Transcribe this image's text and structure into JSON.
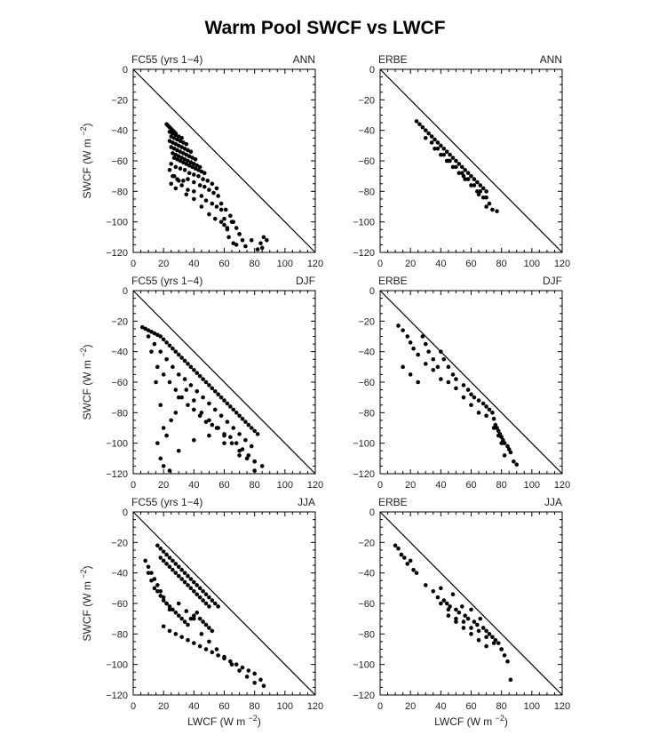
{
  "title": "Warm Pool SWCF vs LWCF",
  "xlabel": "LWCF (W m",
  "ylabel": "SWCF (W m",
  "unit_exponent": "−2",
  "chart_data": [
    {
      "type": "scatter",
      "left_label": "FC55 (yrs 1−4)",
      "right_label": "ANN",
      "xlim": [
        0,
        120
      ],
      "ylim": [
        -120,
        0
      ],
      "x_ticks": [
        0,
        20,
        40,
        60,
        80,
        100,
        120
      ],
      "y_ticks": [
        0,
        -20,
        -40,
        -60,
        -80,
        -100,
        -120
      ],
      "reference_line": [
        [
          0,
          0
        ],
        [
          120,
          -120
        ]
      ],
      "x": [
        22,
        23,
        24,
        25,
        26,
        27,
        28,
        24,
        26,
        28,
        30,
        32,
        25,
        27,
        29,
        31,
        33,
        35,
        24,
        26,
        28,
        30,
        32,
        34,
        36,
        38,
        25,
        27,
        29,
        31,
        33,
        35,
        37,
        39,
        41,
        26,
        28,
        30,
        32,
        34,
        36,
        38,
        40,
        42,
        44,
        27,
        29,
        31,
        33,
        35,
        37,
        39,
        41,
        43,
        45,
        47,
        25,
        28,
        31,
        34,
        37,
        40,
        43,
        46,
        49,
        52,
        24,
        26,
        29,
        33,
        36,
        40,
        44,
        47,
        50,
        53,
        56,
        25,
        28,
        32,
        36,
        40,
        45,
        48,
        52,
        55,
        58,
        27,
        30,
        35,
        40,
        45,
        50,
        54,
        58,
        60,
        62,
        55,
        58,
        61,
        64,
        66,
        68,
        70,
        72,
        60,
        63,
        66,
        70,
        74,
        78,
        82,
        84,
        85,
        86,
        88,
        62,
        65,
        68
      ],
      "y": [
        -36,
        -37,
        -38,
        -39,
        -40,
        -41,
        -42,
        -41,
        -42,
        -43,
        -44,
        -45,
        -44,
        -45,
        -46,
        -47,
        -48,
        -49,
        -47,
        -48,
        -49,
        -50,
        -51,
        -52,
        -53,
        -54,
        -51,
        -52,
        -53,
        -54,
        -55,
        -56,
        -57,
        -58,
        -59,
        -55,
        -56,
        -57,
        -58,
        -59,
        -60,
        -61,
        -62,
        -63,
        -64,
        -58,
        -59,
        -60,
        -61,
        -62,
        -63,
        -64,
        -65,
        -66,
        -67,
        -68,
        -62,
        -64,
        -65,
        -66,
        -68,
        -69,
        -70,
        -72,
        -73,
        -75,
        -66,
        -70,
        -72,
        -73,
        -72,
        -74,
        -76,
        -77,
        -79,
        -81,
        -83,
        -75,
        -78,
        -76,
        -79,
        -80,
        -83,
        -86,
        -88,
        -90,
        -92,
        -70,
        -73,
        -82,
        -85,
        -90,
        -95,
        -98,
        -100,
        -102,
        -104,
        -78,
        -88,
        -92,
        -96,
        -100,
        -104,
        -108,
        -112,
        -98,
        -110,
        -114,
        -108,
        -116,
        -112,
        -118,
        -114,
        -117,
        -110,
        -112,
        -105,
        -100,
        -115
      ]
    },
    {
      "type": "scatter",
      "left_label": "ERBE",
      "right_label": "ANN",
      "xlim": [
        0,
        120
      ],
      "ylim": [
        -120,
        0
      ],
      "x_ticks": [
        0,
        20,
        40,
        60,
        80,
        100,
        120
      ],
      "y_ticks": [
        0,
        -20,
        -40,
        -60,
        -80,
        -100,
        -120
      ],
      "reference_line": [
        [
          0,
          0
        ],
        [
          120,
          -120
        ]
      ],
      "x": [
        24,
        26,
        28,
        30,
        32,
        34,
        36,
        38,
        40,
        42,
        44,
        46,
        48,
        50,
        52,
        54,
        56,
        58,
        60,
        62,
        64,
        66,
        68,
        70,
        30,
        34,
        38,
        42,
        46,
        50,
        54,
        58,
        62,
        66,
        70,
        72,
        36,
        40,
        44,
        48,
        52,
        56,
        60,
        64,
        68,
        70,
        74,
        77,
        45,
        55,
        65
      ],
      "y": [
        -34,
        -36,
        -38,
        -40,
        -42,
        -44,
        -46,
        -48,
        -50,
        -52,
        -54,
        -56,
        -58,
        -60,
        -62,
        -64,
        -66,
        -68,
        -70,
        -72,
        -74,
        -76,
        -78,
        -80,
        -45,
        -48,
        -52,
        -56,
        -60,
        -64,
        -68,
        -72,
        -76,
        -80,
        -84,
        -88,
        -52,
        -56,
        -60,
        -64,
        -68,
        -72,
        -76,
        -80,
        -84,
        -90,
        -92,
        -93,
        -60,
        -70,
        -82
      ]
    },
    {
      "type": "scatter",
      "left_label": "FC55 (yrs 1−4)",
      "right_label": "DJF",
      "xlim": [
        0,
        120
      ],
      "ylim": [
        -120,
        0
      ],
      "x_ticks": [
        0,
        20,
        40,
        60,
        80,
        100,
        120
      ],
      "y_ticks": [
        0,
        -20,
        -40,
        -60,
        -80,
        -100,
        -120
      ],
      "reference_line": [
        [
          0,
          0
        ],
        [
          120,
          -120
        ]
      ],
      "x": [
        6,
        8,
        10,
        12,
        14,
        16,
        18,
        20,
        22,
        24,
        26,
        28,
        30,
        32,
        34,
        36,
        38,
        40,
        42,
        44,
        46,
        48,
        50,
        52,
        54,
        56,
        58,
        60,
        62,
        64,
        66,
        68,
        70,
        72,
        74,
        76,
        78,
        80,
        82,
        10,
        14,
        18,
        22,
        26,
        30,
        34,
        38,
        42,
        46,
        50,
        54,
        58,
        62,
        66,
        70,
        74,
        78,
        12,
        16,
        20,
        24,
        28,
        32,
        36,
        40,
        44,
        48,
        52,
        56,
        60,
        64,
        68,
        72,
        76,
        80,
        15,
        18,
        20,
        22,
        25,
        28,
        30,
        35,
        40,
        45,
        50,
        55,
        60,
        65,
        70,
        75,
        80,
        85,
        16,
        18,
        20,
        24,
        30,
        40,
        50,
        60,
        70,
        80
      ],
      "y": [
        -24,
        -25,
        -26,
        -27,
        -28,
        -29,
        -30,
        -32,
        -34,
        -36,
        -38,
        -40,
        -42,
        -44,
        -46,
        -48,
        -50,
        -52,
        -54,
        -56,
        -58,
        -60,
        -62,
        -64,
        -66,
        -68,
        -70,
        -72,
        -74,
        -76,
        -78,
        -80,
        -82,
        -84,
        -86,
        -88,
        -90,
        -92,
        -94,
        -30,
        -35,
        -40,
        -45,
        -50,
        -55,
        -58,
        -62,
        -66,
        -70,
        -74,
        -78,
        -82,
        -86,
        -90,
        -94,
        -98,
        -102,
        -40,
        -50,
        -55,
        -60,
        -65,
        -70,
        -75,
        -78,
        -82,
        -86,
        -88,
        -90,
        -94,
        -96,
        -100,
        -104,
        -108,
        -112,
        -60,
        -75,
        -90,
        -95,
        -85,
        -80,
        -70,
        -65,
        -72,
        -80,
        -85,
        -90,
        -95,
        -100,
        -105,
        -110,
        -112,
        -115,
        -100,
        -110,
        -115,
        -118,
        -105,
        -98,
        -95,
        -100,
        -108,
        -118
      ]
    },
    {
      "type": "scatter",
      "left_label": "ERBE",
      "right_label": "DJF",
      "xlim": [
        0,
        120
      ],
      "ylim": [
        -120,
        0
      ],
      "x_ticks": [
        0,
        20,
        40,
        60,
        80,
        100,
        120
      ],
      "y_ticks": [
        0,
        -20,
        -40,
        -60,
        -80,
        -100,
        -120
      ],
      "reference_line": [
        [
          0,
          0
        ],
        [
          120,
          -120
        ]
      ],
      "x": [
        12,
        15,
        18,
        20,
        22,
        25,
        28,
        30,
        32,
        35,
        38,
        40,
        42,
        45,
        48,
        50,
        55,
        58,
        60,
        62,
        65,
        68,
        70,
        72,
        74,
        75,
        76,
        77,
        78,
        79,
        80,
        81,
        82,
        84,
        85,
        86,
        88,
        90,
        15,
        20,
        25,
        30,
        35,
        40,
        45,
        50,
        55,
        60,
        65,
        70,
        75,
        78,
        80,
        82
      ],
      "y": [
        -23,
        -26,
        -30,
        -34,
        -38,
        -42,
        -30,
        -35,
        -40,
        -45,
        -50,
        -40,
        -45,
        -50,
        -55,
        -58,
        -62,
        -65,
        -68,
        -70,
        -72,
        -74,
        -76,
        -78,
        -80,
        -84,
        -88,
        -90,
        -92,
        -94,
        -96,
        -98,
        -100,
        -102,
        -104,
        -106,
        -112,
        -114,
        -50,
        -55,
        -60,
        -48,
        -52,
        -58,
        -60,
        -64,
        -70,
        -75,
        -80,
        -82,
        -90,
        -95,
        -100,
        -108
      ]
    },
    {
      "type": "scatter",
      "left_label": "FC55 (yrs 1−4)",
      "right_label": "JJA",
      "xlim": [
        0,
        120
      ],
      "ylim": [
        -120,
        0
      ],
      "x_ticks": [
        0,
        20,
        40,
        60,
        80,
        100,
        120
      ],
      "y_ticks": [
        0,
        -20,
        -40,
        -60,
        -80,
        -100,
        -120
      ],
      "reference_line": [
        [
          0,
          0
        ],
        [
          120,
          -120
        ]
      ],
      "x": [
        16,
        18,
        20,
        22,
        24,
        26,
        28,
        30,
        32,
        34,
        36,
        38,
        40,
        42,
        44,
        46,
        48,
        50,
        52,
        54,
        56,
        18,
        20,
        22,
        24,
        26,
        28,
        30,
        32,
        34,
        36,
        38,
        40,
        42,
        44,
        46,
        48,
        50,
        10,
        12,
        14,
        16,
        18,
        20,
        22,
        24,
        26,
        28,
        30,
        32,
        34,
        36,
        38,
        40,
        42,
        44,
        46,
        48,
        50,
        52,
        20,
        24,
        28,
        32,
        36,
        40,
        44,
        48,
        52,
        56,
        60,
        64,
        68,
        72,
        76,
        80,
        84,
        86,
        30,
        35,
        40,
        45,
        50,
        55,
        60,
        65,
        70,
        75,
        80,
        8,
        10,
        12,
        14,
        16,
        18,
        20,
        22,
        24
      ],
      "y": [
        -22,
        -24,
        -26,
        -28,
        -30,
        -32,
        -34,
        -36,
        -38,
        -40,
        -42,
        -44,
        -46,
        -48,
        -50,
        -52,
        -54,
        -56,
        -58,
        -60,
        -62,
        -30,
        -32,
        -34,
        -36,
        -38,
        -40,
        -42,
        -44,
        -46,
        -48,
        -50,
        -52,
        -54,
        -56,
        -58,
        -60,
        -62,
        -40,
        -45,
        -50,
        -52,
        -55,
        -58,
        -60,
        -62,
        -64,
        -66,
        -68,
        -70,
        -72,
        -74,
        -70,
        -68,
        -66,
        -70,
        -72,
        -74,
        -76,
        -78,
        -75,
        -78,
        -80,
        -82,
        -84,
        -86,
        -88,
        -90,
        -92,
        -94,
        -96,
        -98,
        -100,
        -102,
        -104,
        -106,
        -110,
        -114,
        -60,
        -65,
        -70,
        -80,
        -85,
        -90,
        -95,
        -100,
        -104,
        -108,
        -112,
        -32,
        -36,
        -40,
        -44,
        -48,
        -52,
        -56,
        -60,
        -64
      ]
    },
    {
      "type": "scatter",
      "left_label": "ERBE",
      "right_label": "JJA",
      "xlim": [
        0,
        120
      ],
      "ylim": [
        -120,
        0
      ],
      "x_ticks": [
        0,
        20,
        40,
        60,
        80,
        100,
        120
      ],
      "y_ticks": [
        0,
        -20,
        -40,
        -60,
        -80,
        -100,
        -120
      ],
      "reference_line": [
        [
          0,
          0
        ],
        [
          120,
          -120
        ]
      ],
      "x": [
        10,
        12,
        14,
        16,
        18,
        20,
        22,
        24,
        30,
        35,
        38,
        40,
        42,
        44,
        46,
        48,
        50,
        52,
        54,
        56,
        58,
        60,
        62,
        64,
        66,
        68,
        70,
        72,
        74,
        76,
        78,
        80,
        82,
        84,
        86,
        40,
        45,
        50,
        55,
        60,
        65,
        70,
        75,
        80,
        45,
        50,
        55,
        60,
        65,
        70
      ],
      "y": [
        -22,
        -24,
        -28,
        -30,
        -34,
        -32,
        -38,
        -40,
        -48,
        -52,
        -56,
        -50,
        -58,
        -60,
        -62,
        -54,
        -64,
        -66,
        -62,
        -68,
        -70,
        -64,
        -72,
        -74,
        -70,
        -76,
        -78,
        -80,
        -82,
        -84,
        -86,
        -90,
        -94,
        -98,
        -110,
        -60,
        -64,
        -70,
        -72,
        -76,
        -78,
        -82,
        -86,
        -90,
        -68,
        -72,
        -76,
        -80,
        -84,
        -88
      ]
    }
  ]
}
